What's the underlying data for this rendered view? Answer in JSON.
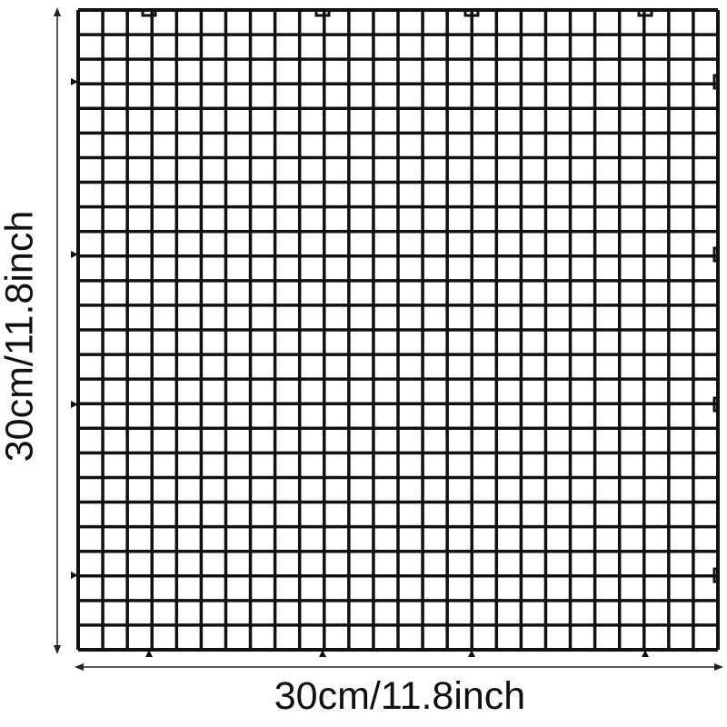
{
  "product": {
    "width_label": "30cm/11.8inch",
    "height_label": "30cm/11.8inch",
    "grid_cells": 26,
    "grid_color": "#111111"
  }
}
